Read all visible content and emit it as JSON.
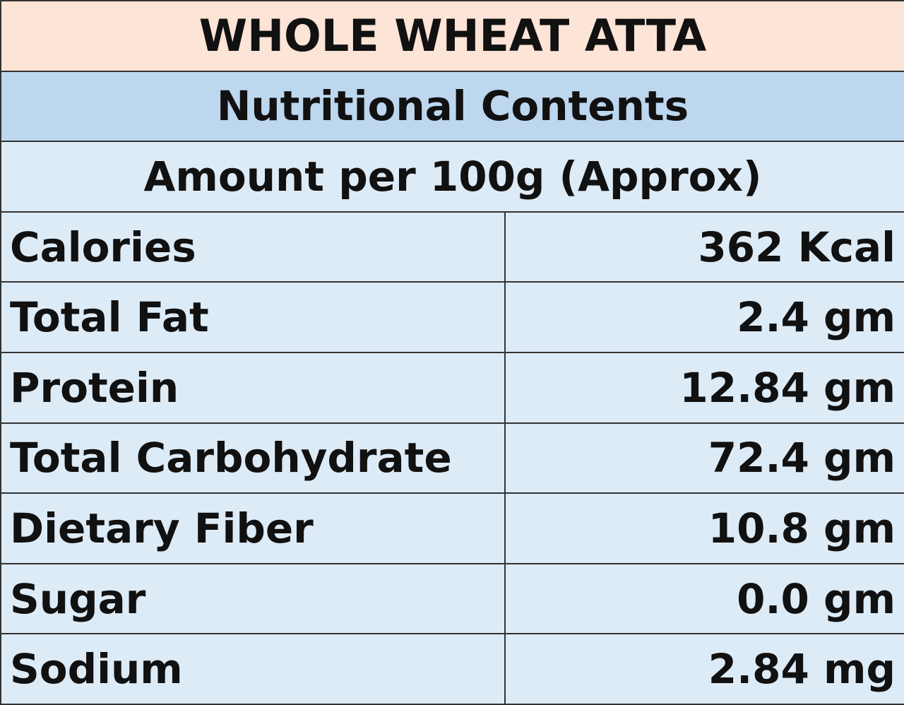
{
  "header": {
    "title": "WHOLE WHEAT ATTA",
    "subtitle": "Nutritional Contents",
    "basis": "Amount per 100g (Approx)"
  },
  "table": {
    "rows": [
      [
        "Calories",
        "362 Kcal"
      ],
      [
        "Total Fat",
        "2.4 gm"
      ],
      [
        "Protein",
        "12.84 gm"
      ],
      [
        "Total Carbohydrate",
        "72.4 gm"
      ],
      [
        "Dietary Fiber",
        "10.8 gm"
      ],
      [
        "Sugar",
        "0.0 gm"
      ],
      [
        "Sodium",
        "2.84 mg"
      ]
    ]
  }
}
